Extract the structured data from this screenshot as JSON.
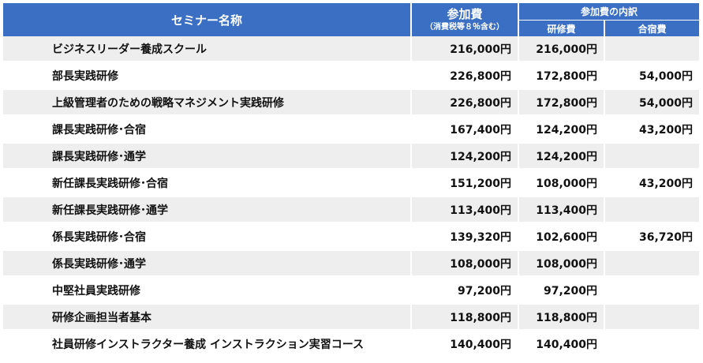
{
  "header": {
    "name_label": "セミナー名称",
    "fee_label": "参加費",
    "fee_note": "（消費税等８％含む）",
    "breakdown_label": "参加費の内訳",
    "training_label": "研修費",
    "lodging_label": "合宿費"
  },
  "rows": [
    {
      "name": "ビジネスリーダー養成スクール",
      "fee": "216,000円",
      "training": "216,000円",
      "lodging": ""
    },
    {
      "name": "部長実践研修",
      "fee": "226,800円",
      "training": "172,800円",
      "lodging": "54,000円"
    },
    {
      "name": "上級管理者のための戦略マネジメント実践研修",
      "fee": "226,800円",
      "training": "172,800円",
      "lodging": "54,000円"
    },
    {
      "name": "課長実践研修･合宿",
      "fee": "167,400円",
      "training": "124,200円",
      "lodging": "43,200円"
    },
    {
      "name": "課長実践研修･通学",
      "fee": "124,200円",
      "training": "124,200円",
      "lodging": ""
    },
    {
      "name": "新任課長実践研修･合宿",
      "fee": "151,200円",
      "training": "108,000円",
      "lodging": "43,200円"
    },
    {
      "name": "新任課長実践研修･通学",
      "fee": "113,400円",
      "training": "113,400円",
      "lodging": ""
    },
    {
      "name": "係長実践研修･合宿",
      "fee": "139,320円",
      "training": "102,600円",
      "lodging": "36,720円"
    },
    {
      "name": "係長実践研修･通学",
      "fee": "108,000円",
      "training": "108,000円",
      "lodging": ""
    },
    {
      "name": "中堅社員実践研修",
      "fee": "97,200円",
      "training": "97,200円",
      "lodging": ""
    },
    {
      "name": "研修企画担当者基本",
      "fee": "118,800円",
      "training": "118,800円",
      "lodging": ""
    },
    {
      "name": "社員研修インストラクター養成 インストラクション実習コース",
      "fee": "140,400円",
      "training": "140,400円",
      "lodging": ""
    }
  ]
}
